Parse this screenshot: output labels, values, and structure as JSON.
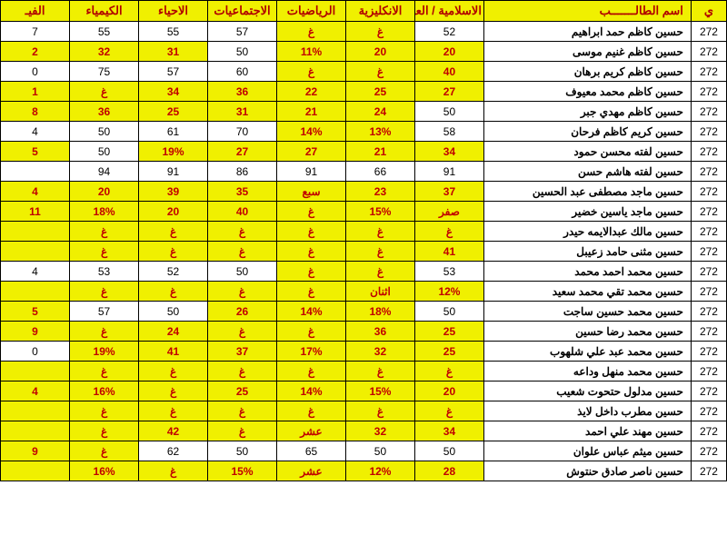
{
  "columns": [
    "ي",
    "اسم الطالـــــــب",
    "الاسلامية / العربية",
    "الانكليزية",
    "الرياضيات",
    "الاجتماعيات",
    "الاحياء",
    "الكيمياء",
    "الفيـ"
  ],
  "id_prefix": "272",
  "rows": [
    {
      "name": "حسين كاظم حمد ابراهيم",
      "cells": [
        {
          "v": "52",
          "f": 0
        },
        {
          "v": "غ",
          "f": 1
        },
        {
          "v": "غ",
          "f": 1
        },
        {
          "v": "57",
          "f": 0
        },
        {
          "v": "55",
          "f": 0
        },
        {
          "v": "55",
          "f": 0
        },
        {
          "v": "7",
          "f": 0
        }
      ]
    },
    {
      "name": "حسين كاظم غنيم موسى",
      "cells": [
        {
          "v": "20",
          "f": 1
        },
        {
          "v": "20",
          "f": 1
        },
        {
          "v": "11%",
          "f": 1
        },
        {
          "v": "50",
          "f": 0
        },
        {
          "v": "31",
          "f": 1
        },
        {
          "v": "32",
          "f": 1
        },
        {
          "v": "2",
          "f": 1
        }
      ]
    },
    {
      "name": "حسين كاظم كريم برهان",
      "cells": [
        {
          "v": "40",
          "f": 1
        },
        {
          "v": "غ",
          "f": 1
        },
        {
          "v": "غ",
          "f": 1
        },
        {
          "v": "60",
          "f": 0
        },
        {
          "v": "57",
          "f": 0
        },
        {
          "v": "75",
          "f": 0
        },
        {
          "v": "0",
          "f": 0
        }
      ]
    },
    {
      "name": "حسين كاظم محمد معيوف",
      "cells": [
        {
          "v": "27",
          "f": 1
        },
        {
          "v": "25",
          "f": 1
        },
        {
          "v": "22",
          "f": 1
        },
        {
          "v": "36",
          "f": 1
        },
        {
          "v": "34",
          "f": 1
        },
        {
          "v": "غ",
          "f": 1
        },
        {
          "v": "1",
          "f": 1
        }
      ]
    },
    {
      "name": "حسين كاظم مهدي جبر",
      "cells": [
        {
          "v": "50",
          "f": 0
        },
        {
          "v": "24",
          "f": 1
        },
        {
          "v": "21",
          "f": 1
        },
        {
          "v": "31",
          "f": 1
        },
        {
          "v": "25",
          "f": 1
        },
        {
          "v": "36",
          "f": 1
        },
        {
          "v": "8",
          "f": 1
        }
      ]
    },
    {
      "name": "حسين كريم كاظم فرحان",
      "cells": [
        {
          "v": "58",
          "f": 0
        },
        {
          "v": "13%",
          "f": 1
        },
        {
          "v": "14%",
          "f": 1
        },
        {
          "v": "70",
          "f": 0
        },
        {
          "v": "61",
          "f": 0
        },
        {
          "v": "50",
          "f": 0
        },
        {
          "v": "4",
          "f": 0
        }
      ]
    },
    {
      "name": "حسين لفته محسن حمود",
      "cells": [
        {
          "v": "34",
          "f": 1
        },
        {
          "v": "21",
          "f": 1
        },
        {
          "v": "27",
          "f": 1
        },
        {
          "v": "27",
          "f": 1
        },
        {
          "v": "19%",
          "f": 1
        },
        {
          "v": "50",
          "f": 0
        },
        {
          "v": "5",
          "f": 1
        }
      ]
    },
    {
      "name": "حسين لفته هاشم حسن",
      "cells": [
        {
          "v": "91",
          "f": 0
        },
        {
          "v": "66",
          "f": 0
        },
        {
          "v": "91",
          "f": 0
        },
        {
          "v": "86",
          "f": 0
        },
        {
          "v": "91",
          "f": 0
        },
        {
          "v": "94",
          "f": 0
        },
        {
          "v": "",
          "f": 0
        }
      ]
    },
    {
      "name": "حسين ماجد مصطفى عبد الحسين",
      "cells": [
        {
          "v": "37",
          "f": 1
        },
        {
          "v": "23",
          "f": 1
        },
        {
          "v": "سبع",
          "f": 1
        },
        {
          "v": "35",
          "f": 1
        },
        {
          "v": "39",
          "f": 1
        },
        {
          "v": "20",
          "f": 1
        },
        {
          "v": "4",
          "f": 1
        }
      ]
    },
    {
      "name": "حسين ماجد ياسين خضير",
      "cells": [
        {
          "v": "صفر",
          "f": 1
        },
        {
          "v": "15%",
          "f": 1
        },
        {
          "v": "غ",
          "f": 1
        },
        {
          "v": "40",
          "f": 1
        },
        {
          "v": "20",
          "f": 1
        },
        {
          "v": "18%",
          "f": 1
        },
        {
          "v": "11",
          "f": 1
        }
      ]
    },
    {
      "name": "حسين مالك عبدالايمه حيدر",
      "cells": [
        {
          "v": "غ",
          "f": 1
        },
        {
          "v": "غ",
          "f": 1
        },
        {
          "v": "غ",
          "f": 1
        },
        {
          "v": "غ",
          "f": 1
        },
        {
          "v": "غ",
          "f": 1
        },
        {
          "v": "غ",
          "f": 1
        },
        {
          "v": "",
          "f": 1
        }
      ]
    },
    {
      "name": "حسين مثنى حامد زعيبل",
      "cells": [
        {
          "v": "41",
          "f": 1
        },
        {
          "v": "غ",
          "f": 1
        },
        {
          "v": "غ",
          "f": 1
        },
        {
          "v": "غ",
          "f": 1
        },
        {
          "v": "غ",
          "f": 1
        },
        {
          "v": "غ",
          "f": 1
        },
        {
          "v": "",
          "f": 1
        }
      ]
    },
    {
      "name": "حسين محمد احمد محمد",
      "cells": [
        {
          "v": "53",
          "f": 0
        },
        {
          "v": "غ",
          "f": 1
        },
        {
          "v": "غ",
          "f": 1
        },
        {
          "v": "50",
          "f": 0
        },
        {
          "v": "52",
          "f": 0
        },
        {
          "v": "53",
          "f": 0
        },
        {
          "v": "4",
          "f": 0
        }
      ]
    },
    {
      "name": "حسين محمد تقي محمد سعيد",
      "cells": [
        {
          "v": "12%",
          "f": 1
        },
        {
          "v": "اثنان",
          "f": 1
        },
        {
          "v": "غ",
          "f": 1
        },
        {
          "v": "غ",
          "f": 1
        },
        {
          "v": "غ",
          "f": 1
        },
        {
          "v": "غ",
          "f": 1
        },
        {
          "v": "",
          "f": 1
        }
      ]
    },
    {
      "name": "حسين محمد حسين ساجت",
      "cells": [
        {
          "v": "50",
          "f": 0
        },
        {
          "v": "18%",
          "f": 1
        },
        {
          "v": "14%",
          "f": 1
        },
        {
          "v": "26",
          "f": 1
        },
        {
          "v": "50",
          "f": 0
        },
        {
          "v": "57",
          "f": 0
        },
        {
          "v": "5",
          "f": 1
        }
      ]
    },
    {
      "name": "حسين محمد رضا حسين",
      "cells": [
        {
          "v": "25",
          "f": 1
        },
        {
          "v": "36",
          "f": 1
        },
        {
          "v": "غ",
          "f": 1
        },
        {
          "v": "غ",
          "f": 1
        },
        {
          "v": "24",
          "f": 1
        },
        {
          "v": "غ",
          "f": 1
        },
        {
          "v": "9",
          "f": 1
        }
      ]
    },
    {
      "name": "حسين محمد عبد علي شلهوب",
      "cells": [
        {
          "v": "25",
          "f": 1
        },
        {
          "v": "32",
          "f": 1
        },
        {
          "v": "17%",
          "f": 1
        },
        {
          "v": "37",
          "f": 1
        },
        {
          "v": "41",
          "f": 1
        },
        {
          "v": "19%",
          "f": 1
        },
        {
          "v": "0",
          "f": 0
        }
      ]
    },
    {
      "name": "حسين محمد منهل وداعه",
      "cells": [
        {
          "v": "غ",
          "f": 1
        },
        {
          "v": "غ",
          "f": 1
        },
        {
          "v": "غ",
          "f": 1
        },
        {
          "v": "غ",
          "f": 1
        },
        {
          "v": "غ",
          "f": 1
        },
        {
          "v": "غ",
          "f": 1
        },
        {
          "v": "",
          "f": 1
        }
      ]
    },
    {
      "name": "حسين مدلول حتحوت شعيب",
      "cells": [
        {
          "v": "20",
          "f": 1
        },
        {
          "v": "15%",
          "f": 1
        },
        {
          "v": "14%",
          "f": 1
        },
        {
          "v": "25",
          "f": 1
        },
        {
          "v": "غ",
          "f": 1
        },
        {
          "v": "16%",
          "f": 1
        },
        {
          "v": "4",
          "f": 1
        }
      ]
    },
    {
      "name": "حسين مطرب داخل لايذ",
      "cells": [
        {
          "v": "غ",
          "f": 1
        },
        {
          "v": "غ",
          "f": 1
        },
        {
          "v": "غ",
          "f": 1
        },
        {
          "v": "غ",
          "f": 1
        },
        {
          "v": "غ",
          "f": 1
        },
        {
          "v": "غ",
          "f": 1
        },
        {
          "v": "",
          "f": 1
        }
      ]
    },
    {
      "name": "حسين مهند علي احمد",
      "cells": [
        {
          "v": "34",
          "f": 1
        },
        {
          "v": "32",
          "f": 1
        },
        {
          "v": "عشر",
          "f": 1
        },
        {
          "v": "غ",
          "f": 1
        },
        {
          "v": "42",
          "f": 1
        },
        {
          "v": "غ",
          "f": 1
        },
        {
          "v": "",
          "f": 1
        }
      ]
    },
    {
      "name": "حسين ميثم عباس علوان",
      "cells": [
        {
          "v": "50",
          "f": 0
        },
        {
          "v": "50",
          "f": 0
        },
        {
          "v": "65",
          "f": 0
        },
        {
          "v": "50",
          "f": 0
        },
        {
          "v": "62",
          "f": 0
        },
        {
          "v": "غ",
          "f": 1
        },
        {
          "v": "9",
          "f": 1
        }
      ]
    },
    {
      "name": "حسين ناصر صادق حنتوش",
      "cells": [
        {
          "v": "28",
          "f": 1
        },
        {
          "v": "12%",
          "f": 1
        },
        {
          "v": "عشر",
          "f": 1
        },
        {
          "v": "15%",
          "f": 1
        },
        {
          "v": "غ",
          "f": 1
        },
        {
          "v": "16%",
          "f": 1
        },
        {
          "v": "",
          "f": 1
        }
      ]
    }
  ]
}
